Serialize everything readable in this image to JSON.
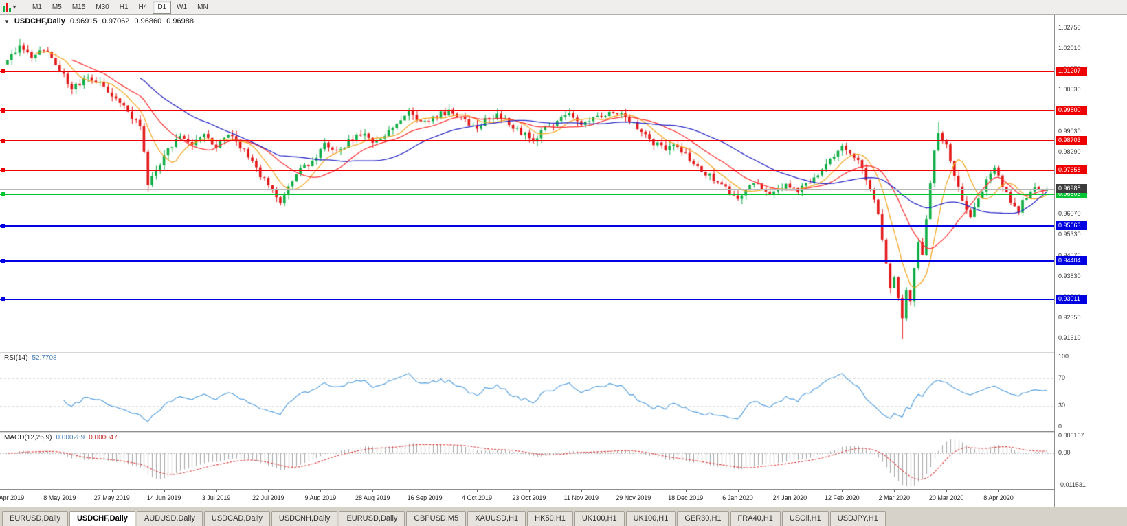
{
  "icons": {
    "caret_down": "▼",
    "caret_small": "▾"
  },
  "toolbar": {
    "timeframes": [
      {
        "label": "M1",
        "active": false
      },
      {
        "label": "M5",
        "active": false
      },
      {
        "label": "M15",
        "active": false
      },
      {
        "label": "M30",
        "active": false
      },
      {
        "label": "H1",
        "active": false
      },
      {
        "label": "H4",
        "active": false
      },
      {
        "label": "D1",
        "active": true
      },
      {
        "label": "W1",
        "active": false
      },
      {
        "label": "MN",
        "active": false
      }
    ]
  },
  "main_chart": {
    "symbol": "USDCHF,Daily",
    "o": "0.96915",
    "h": "0.97062",
    "l": "0.96860",
    "c": "0.96988"
  },
  "rsi_panel": {
    "name": "RSI(14)",
    "value": "52.7708",
    "scale_labels": [
      "100",
      "70",
      "30",
      "0"
    ]
  },
  "macd_panel": {
    "name": "MACD(12,26,9)",
    "value_main": "0.000289",
    "value_signal": "0.000047",
    "scale_labels": [
      "0.006167",
      "0.00",
      "-0.011531"
    ]
  },
  "time_axis": {
    "label_step": 13,
    "labels": [
      "19 Apr 2019",
      "8 May 2019",
      "27 May 2019",
      "14 Jun 2019",
      "3 Jul 2019",
      "22 Jul 2019",
      "9 Aug 2019",
      "28 Aug 2019",
      "16 Sep 2019",
      "4 Oct 2019",
      "23 Oct 2019",
      "11 Nov 2019",
      "29 Nov 2019",
      "18 Dec 2019",
      "6 Jan 2020",
      "24 Jan 2020",
      "12 Feb 2020",
      "2 Mar 2020",
      "20 Mar 2020",
      "8 Apr 2020"
    ]
  },
  "tabs": [
    {
      "label": "EURUSD,Daily",
      "active": false
    },
    {
      "label": "USDCHF,Daily",
      "active": true
    },
    {
      "label": "AUDUSD,Daily",
      "active": false
    },
    {
      "label": "USDCAD,Daily",
      "active": false
    },
    {
      "label": "USDCNH,Daily",
      "active": false
    },
    {
      "label": "EURUSD,Daily",
      "active": false
    },
    {
      "label": "GBPUSD,M5",
      "active": false
    },
    {
      "label": "XAUUSD,H1",
      "active": false
    },
    {
      "label": "HK50,H1",
      "active": false
    },
    {
      "label": "UK100,H1",
      "active": false
    },
    {
      "label": "UK100,H1",
      "active": false
    },
    {
      "label": "GER30,H1",
      "active": false
    },
    {
      "label": "FRA40,H1",
      "active": false
    },
    {
      "label": "USOil,H1",
      "active": false
    },
    {
      "label": "USDJPY,H1",
      "active": false
    }
  ],
  "colors": {
    "candle_up": "#0ead45",
    "candle_down": "#e21717",
    "ma_fast": "#f5a623",
    "ma_mid": "#ff3333",
    "ma_slow": "#2929c8",
    "rsi_line": "#56a0e0",
    "macd_hist": "#a6a6a6",
    "macd_signal": "#e03c3c",
    "hline_red": "#ee0000",
    "hline_green": "#00c431",
    "hline_blue": "#0000e0",
    "lastprice_bg": "#3b3b3b"
  },
  "chart_data": {
    "type": "candlestick",
    "symbol": "USDCHF",
    "timeframe": "Daily",
    "n_candles": 260,
    "ylim": [
      0.9125,
      1.0312
    ],
    "noise": 0.0022,
    "last_price": 0.96988,
    "ohlc_last": {
      "open": 0.96915,
      "high": 0.97062,
      "low": 0.9686,
      "close": 0.96988
    },
    "axis_ticks": [
      "1.02750",
      "1.02010",
      "1.01270",
      "1.00530",
      "0.99790",
      "0.99030",
      "0.98290",
      "0.97550",
      "0.96810",
      "0.96070",
      "0.95330",
      "0.94570",
      "0.93830",
      "0.93090",
      "0.92350",
      "0.91610"
    ],
    "hlines": [
      {
        "price": 1.01207,
        "label": "1.01207",
        "color": "red"
      },
      {
        "price": 0.998,
        "label": "0.99800",
        "color": "red"
      },
      {
        "price": 0.98703,
        "label": "0.98703",
        "color": "red"
      },
      {
        "price": 0.97658,
        "label": "0.97658",
        "color": "red"
      },
      {
        "price": 0.96803,
        "label": "0.96803",
        "color": "green"
      },
      {
        "price": 0.95663,
        "label": "0.95663",
        "color": "blue"
      },
      {
        "price": 0.94404,
        "label": "0.94404",
        "color": "blue"
      },
      {
        "price": 0.93011,
        "label": "0.93011",
        "color": "blue"
      }
    ],
    "ma_periods": [
      {
        "period": 8,
        "color_key": "ma_fast"
      },
      {
        "period": 17,
        "color_key": "ma_mid"
      },
      {
        "period": 34,
        "color_key": "ma_slow"
      }
    ],
    "rsi": {
      "period": 14,
      "levels": [
        70,
        30
      ],
      "current": 52.7708
    },
    "macd": {
      "fast": 12,
      "slow": 26,
      "signal": 9,
      "ylim": [
        -0.0118,
        0.0064
      ],
      "current_main": 0.000289,
      "current_signal": 4.7e-05
    },
    "close_anchors": [
      [
        0,
        1.016
      ],
      [
        3,
        1.0205
      ],
      [
        6,
        1.017
      ],
      [
        9,
        1.0198
      ],
      [
        13,
        1.013
      ],
      [
        16,
        1.0062
      ],
      [
        20,
        1.0098
      ],
      [
        24,
        1.0068
      ],
      [
        27,
        1.0022
      ],
      [
        30,
        0.9975
      ],
      [
        33,
        0.993
      ],
      [
        35,
        0.9718
      ],
      [
        37,
        0.9762
      ],
      [
        40,
        0.984
      ],
      [
        43,
        0.9898
      ],
      [
        46,
        0.9864
      ],
      [
        49,
        0.9886
      ],
      [
        52,
        0.9844
      ],
      [
        55,
        0.9898
      ],
      [
        58,
        0.9854
      ],
      [
        61,
        0.9792
      ],
      [
        64,
        0.9728
      ],
      [
        66,
        0.969
      ],
      [
        68,
        0.9657
      ],
      [
        70,
        0.9704
      ],
      [
        73,
        0.9764
      ],
      [
        76,
        0.9802
      ],
      [
        79,
        0.9854
      ],
      [
        82,
        0.983
      ],
      [
        85,
        0.987
      ],
      [
        88,
        0.99
      ],
      [
        91,
        0.9862
      ],
      [
        94,
        0.989
      ],
      [
        97,
        0.993
      ],
      [
        100,
        0.997
      ],
      [
        103,
        0.9932
      ],
      [
        106,
        0.996
      ],
      [
        110,
        0.9974
      ],
      [
        113,
        0.995
      ],
      [
        116,
        0.9916
      ],
      [
        119,
        0.9942
      ],
      [
        122,
        0.996
      ],
      [
        125,
        0.9934
      ],
      [
        128,
        0.9902
      ],
      [
        131,
        0.9876
      ],
      [
        134,
        0.9914
      ],
      [
        137,
        0.9946
      ],
      [
        140,
        0.997
      ],
      [
        143,
        0.9936
      ],
      [
        146,
        0.9954
      ],
      [
        149,
        0.997
      ],
      [
        152,
        0.9976
      ],
      [
        155,
        0.9942
      ],
      [
        158,
        0.9906
      ],
      [
        161,
        0.9864
      ],
      [
        164,
        0.984
      ],
      [
        167,
        0.9854
      ],
      [
        170,
        0.9802
      ],
      [
        173,
        0.9764
      ],
      [
        176,
        0.9734
      ],
      [
        179,
        0.9702
      ],
      [
        182,
        0.9666
      ],
      [
        185,
        0.972
      ],
      [
        188,
        0.97
      ],
      [
        191,
        0.9682
      ],
      [
        194,
        0.9706
      ],
      [
        197,
        0.9694
      ],
      [
        200,
        0.972
      ],
      [
        203,
        0.9774
      ],
      [
        206,
        0.9824
      ],
      [
        208,
        0.9846
      ],
      [
        211,
        0.982
      ],
      [
        213,
        0.9776
      ],
      [
        215,
        0.97
      ],
      [
        217,
        0.96
      ],
      [
        218,
        0.952
      ],
      [
        219,
        0.943
      ],
      [
        220,
        0.935
      ],
      [
        221,
        0.939
      ],
      [
        222,
        0.93
      ],
      [
        223,
        0.9245
      ],
      [
        224,
        0.933
      ],
      [
        225,
        0.929
      ],
      [
        226,
        0.942
      ],
      [
        227,
        0.951
      ],
      [
        228,
        0.947
      ],
      [
        229,
        0.96
      ],
      [
        230,
        0.972
      ],
      [
        231,
        0.983
      ],
      [
        232,
        0.99
      ],
      [
        234,
        0.986
      ],
      [
        236,
        0.975
      ],
      [
        238,
        0.966
      ],
      [
        240,
        0.959
      ],
      [
        242,
        0.9655
      ],
      [
        244,
        0.973
      ],
      [
        246,
        0.9765
      ],
      [
        248,
        0.971
      ],
      [
        250,
        0.9658
      ],
      [
        252,
        0.9622
      ],
      [
        254,
        0.9675
      ],
      [
        256,
        0.9705
      ],
      [
        258,
        0.9688
      ],
      [
        259,
        0.96988
      ]
    ],
    "wick_overrides": [
      [
        3,
        "high",
        1.0236
      ],
      [
        35,
        "low",
        0.969
      ],
      [
        68,
        "low",
        0.9639
      ],
      [
        223,
        "low",
        0.9161
      ],
      [
        232,
        "high",
        0.9938
      ]
    ]
  }
}
